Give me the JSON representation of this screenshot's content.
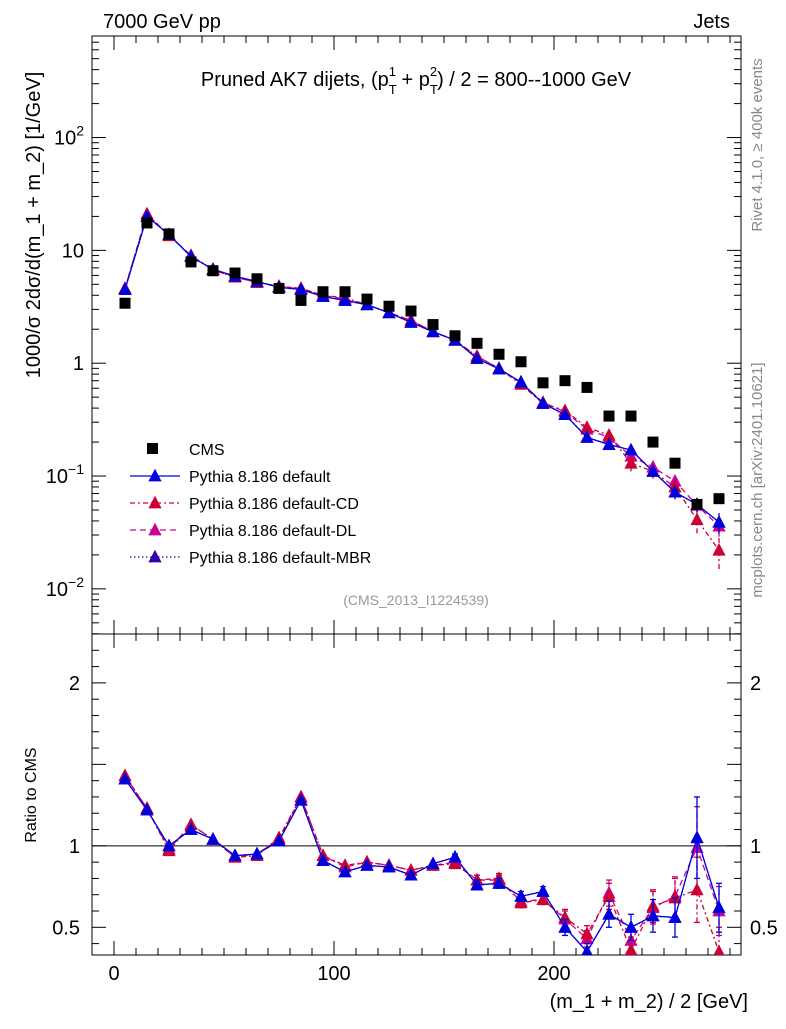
{
  "header": {
    "left": "7000 GeV pp",
    "right": "Jets"
  },
  "side_labels": {
    "top": "Rivet 4.1.0, ≥ 400k events",
    "bottom": "mcplots.cern.ch [arXiv:2401.10621]"
  },
  "chart_data": {
    "type": "scatter",
    "title": "Pruned AK7 dijets, (p_T^1 + p_T^2) / 2 = 800--1000 GeV",
    "watermark": "(CMS_2013_I1224539)",
    "xlabel": "(m_1 + m_2) / 2 [GeV]",
    "ylabel": "1000/σ 2dσ/d(m_1 + m_2) [1/GeV]",
    "ratio_ylabel": "Ratio to CMS",
    "xlim": [
      -10,
      285
    ],
    "ylim_log10": [
      -2.4,
      2.9
    ],
    "ratio_ylim": [
      0.33,
      2.3
    ],
    "x_ticks": [
      0,
      100,
      200
    ],
    "y_ticks": [
      {
        "value": 100,
        "label": "10",
        "exp": "2"
      },
      {
        "value": 10,
        "label": "10",
        "exp": ""
      },
      {
        "value": 1,
        "label": "1",
        "exp": ""
      },
      {
        "value": 0.1,
        "label": "10",
        "exp": "−1"
      },
      {
        "value": 0.01,
        "label": "10",
        "exp": "−2"
      }
    ],
    "ratio_ticks": [
      0.5,
      1,
      2
    ],
    "x": [
      5,
      15,
      25,
      35,
      45,
      55,
      65,
      75,
      85,
      95,
      105,
      115,
      125,
      135,
      145,
      155,
      165,
      175,
      185,
      195,
      205,
      215,
      225,
      235,
      245,
      255,
      265,
      275
    ],
    "cms": [
      3.4,
      17.5,
      14.0,
      7.9,
      6.6,
      6.3,
      5.6,
      4.6,
      3.6,
      4.3,
      4.3,
      3.7,
      3.2,
      2.9,
      2.2,
      1.75,
      1.5,
      1.2,
      1.03,
      0.67,
      0.7,
      0.61,
      0.34,
      0.34,
      0.2,
      0.13,
      0.056,
      0.063
    ],
    "series": [
      {
        "name": "Pythia 8.186 default",
        "color": "#0000dd",
        "dash": "",
        "values": [
          4.5,
          20.0,
          13.8,
          8.8,
          6.8,
          5.9,
          5.3,
          4.7,
          4.5,
          3.9,
          3.6,
          3.3,
          2.8,
          2.3,
          1.9,
          1.6,
          1.1,
          0.89,
          0.68,
          0.44,
          0.35,
          0.22,
          0.19,
          0.17,
          0.11,
          0.072,
          0.056,
          0.039
        ],
        "errors": [
          0,
          0,
          0,
          0,
          0,
          0,
          0,
          0,
          0,
          0,
          0,
          0,
          0,
          0,
          0,
          0,
          0,
          0,
          0,
          0,
          0,
          0,
          0,
          0,
          0.012,
          0.01,
          0.008,
          0.008
        ]
      },
      {
        "name": "Pythia 8.186 default-CD",
        "color": "#cc0033",
        "dash": "5,3,2,3",
        "values": [
          4.6,
          21.0,
          13.5,
          9.0,
          6.7,
          5.8,
          5.2,
          4.8,
          4.6,
          4.0,
          3.8,
          3.3,
          2.8,
          2.4,
          1.9,
          1.6,
          1.15,
          0.9,
          0.65,
          0.44,
          0.38,
          0.27,
          0.23,
          0.13,
          0.11,
          0.08,
          0.041,
          0.022
        ],
        "errors": [
          0,
          0,
          0,
          0,
          0,
          0,
          0,
          0,
          0,
          0,
          0,
          0,
          0,
          0,
          0,
          0,
          0,
          0,
          0,
          0,
          0,
          0,
          0.02,
          0.02,
          0.015,
          0.012,
          0.01,
          0.007
        ]
      },
      {
        "name": "Pythia 8.186 default-DL",
        "color": "#cc0099",
        "dash": "6,4",
        "values": [
          4.6,
          21.0,
          13.6,
          9.0,
          6.7,
          5.8,
          5.2,
          4.8,
          4.6,
          4.0,
          3.7,
          3.3,
          2.8,
          2.4,
          1.9,
          1.6,
          1.15,
          0.9,
          0.67,
          0.45,
          0.37,
          0.26,
          0.22,
          0.15,
          0.12,
          0.09,
          0.055,
          0.036
        ],
        "errors": [
          0,
          0,
          0,
          0,
          0,
          0,
          0,
          0,
          0,
          0,
          0,
          0,
          0,
          0,
          0,
          0,
          0,
          0,
          0,
          0,
          0,
          0,
          0.02,
          0.02,
          0.015,
          0.012,
          0.01,
          0.007
        ]
      },
      {
        "name": "Pythia 8.186 default-MBR",
        "color": "#3300aa",
        "dash": "1.5,2.5",
        "values": [
          4.5,
          20.0,
          13.8,
          8.8,
          6.8,
          5.9,
          5.3,
          4.7,
          4.5,
          3.9,
          3.6,
          3.3,
          2.8,
          2.3,
          1.9,
          1.6,
          1.1,
          0.89,
          0.68,
          0.44,
          0.35,
          0.22,
          0.19,
          0.17,
          0.11,
          0.072,
          0.056,
          0.039
        ],
        "errors": [
          0,
          0,
          0,
          0,
          0,
          0,
          0,
          0,
          0,
          0,
          0,
          0,
          0,
          0,
          0,
          0,
          0,
          0,
          0,
          0,
          0,
          0,
          0,
          0,
          0,
          0,
          0,
          0
        ]
      }
    ],
    "ratios": [
      {
        "name": "Pythia 8.186 default",
        "values": [
          1.41,
          1.22,
          1.0,
          1.1,
          1.04,
          0.94,
          0.95,
          1.03,
          1.28,
          0.91,
          0.84,
          0.88,
          0.87,
          0.82,
          0.89,
          0.93,
          0.76,
          0.77,
          0.69,
          0.72,
          0.5,
          0.35,
          0.58,
          0.5,
          0.57,
          0.56,
          1.05,
          0.62
        ],
        "errors": [
          0,
          0,
          0,
          0,
          0,
          0,
          0,
          0,
          0,
          0,
          0,
          0,
          0,
          0,
          0,
          0.02,
          0.03,
          0.03,
          0.03,
          0.03,
          0.05,
          0.05,
          0.08,
          0.08,
          0.1,
          0.12,
          0.25,
          0.15
        ]
      },
      {
        "name": "Pythia 8.186 default-CD",
        "values": [
          1.43,
          1.23,
          0.97,
          1.13,
          1.04,
          0.93,
          0.94,
          1.05,
          1.3,
          0.94,
          0.88,
          0.9,
          0.88,
          0.85,
          0.88,
          0.89,
          0.79,
          0.8,
          0.65,
          0.67,
          0.56,
          0.46,
          0.69,
          0.36,
          0.63,
          0.68,
          0.73,
          0.35
        ],
        "errors": [
          0,
          0,
          0,
          0,
          0,
          0,
          0,
          0,
          0,
          0,
          0,
          0,
          0,
          0,
          0,
          0.02,
          0.03,
          0.03,
          0.03,
          0.03,
          0.05,
          0.05,
          0.08,
          0.08,
          0.1,
          0.12,
          0.2,
          0.15
        ]
      },
      {
        "name": "Pythia 8.186 default-DL",
        "values": [
          1.43,
          1.23,
          0.98,
          1.13,
          1.04,
          0.93,
          0.95,
          1.04,
          1.3,
          0.94,
          0.87,
          0.9,
          0.88,
          0.85,
          0.88,
          0.9,
          0.79,
          0.79,
          0.66,
          0.67,
          0.55,
          0.43,
          0.71,
          0.42,
          0.62,
          0.69,
          0.99,
          0.6
        ],
        "errors": [
          0,
          0,
          0,
          0,
          0,
          0,
          0,
          0,
          0,
          0,
          0,
          0,
          0,
          0,
          0,
          0.02,
          0.03,
          0.03,
          0.03,
          0.03,
          0.05,
          0.05,
          0.08,
          0.08,
          0.1,
          0.12,
          0.25,
          0.15
        ]
      },
      {
        "name": "Pythia 8.186 default-MBR",
        "values": [
          1.41,
          1.22,
          1.0,
          1.1,
          1.04,
          0.94,
          0.95,
          1.03,
          1.28,
          0.91,
          0.84,
          0.88,
          0.87,
          0.82,
          0.89,
          0.93,
          0.76,
          0.77,
          0.69,
          0.72,
          0.5,
          0.35,
          0.58,
          0.5,
          0.57,
          0.56,
          1.05,
          0.62
        ],
        "errors": [
          0,
          0,
          0,
          0,
          0,
          0,
          0,
          0,
          0,
          0,
          0,
          0,
          0,
          0,
          0,
          0,
          0,
          0,
          0,
          0,
          0,
          0,
          0,
          0,
          0,
          0,
          0,
          0
        ]
      }
    ],
    "legend": [
      {
        "label": "CMS"
      },
      {
        "label": "Pythia 8.186 default"
      },
      {
        "label": "Pythia 8.186 default-CD"
      },
      {
        "label": "Pythia 8.186 default-DL"
      },
      {
        "label": "Pythia 8.186 default-MBR"
      }
    ]
  }
}
